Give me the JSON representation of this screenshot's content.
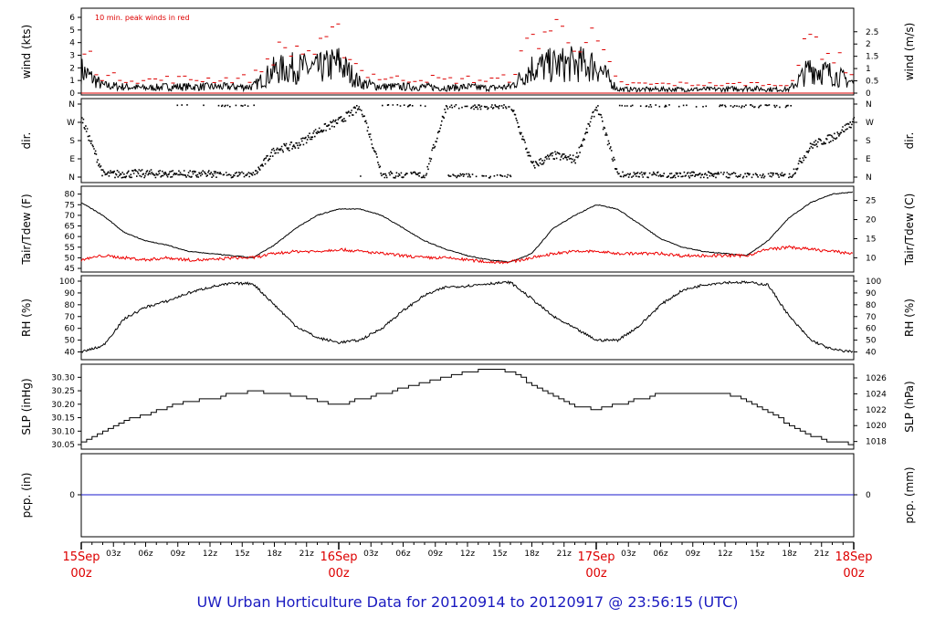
{
  "title": "UW Urban Horticulture Data for 20120914  to  20120917 @ 23:56:15  (UTC)",
  "colors": {
    "peak": "#dd0000",
    "dew": "#ee0000",
    "pcp": "#1a1acc",
    "day_label": "#dd0000",
    "title": "#1a1ac0"
  },
  "chart_data": [
    {
      "type": "line",
      "name": "wind",
      "ylabel": "wind (kts)",
      "ylabel_right": "wind (m/s)",
      "annotation": "10 min. peak winds in red",
      "ylim": [
        0,
        6
      ],
      "yticks": [
        "0",
        "1",
        "2",
        "3",
        "4",
        "5",
        "6"
      ],
      "yticks_right": [
        "0",
        "0.5",
        "1",
        "1.5",
        "2",
        "2.5"
      ],
      "x_hours": [
        0,
        2,
        4,
        6,
        8,
        10,
        12,
        14,
        16,
        18,
        20,
        22,
        24,
        26,
        28,
        30,
        32,
        34,
        36,
        38,
        40,
        42,
        44,
        46,
        48,
        50,
        52,
        54,
        56,
        58,
        60,
        62,
        64,
        66,
        68,
        70,
        72
      ],
      "wind_kts": [
        1.8,
        0.6,
        0.5,
        0.4,
        0.5,
        0.5,
        0.5,
        0.5,
        0.5,
        1.8,
        2.0,
        1.9,
        2.4,
        0.8,
        0.5,
        0.5,
        0.5,
        0.4,
        0.5,
        0.4,
        0.5,
        2.0,
        2.2,
        2.3,
        2.2,
        0.3,
        0.3,
        0.3,
        0.3,
        0.3,
        0.3,
        0.4,
        0.3,
        0.3,
        2.0,
        1.5,
        0.8
      ],
      "peak_kts": [
        3.8,
        1.3,
        1.2,
        1.0,
        1.1,
        1.1,
        1.1,
        1.1,
        1.2,
        3.2,
        3.5,
        3.2,
        4.5,
        1.8,
        1.2,
        1.1,
        1.2,
        1.0,
        1.1,
        1.0,
        1.2,
        4.3,
        5.2,
        4.4,
        4.0,
        0.8,
        0.7,
        0.7,
        0.7,
        0.7,
        0.6,
        0.8,
        0.6,
        0.6,
        4.5,
        3.0,
        1.6
      ]
    },
    {
      "type": "scatter",
      "name": "dir",
      "ylabel": "dir.",
      "ylabel_right": "dir.",
      "yticks": [
        "N",
        "E",
        "S",
        "W",
        "N"
      ],
      "x_hours": [
        0,
        2,
        4,
        6,
        8,
        10,
        12,
        14,
        16,
        18,
        20,
        22,
        24,
        26,
        28,
        30,
        32,
        34,
        36,
        38,
        40,
        42,
        44,
        46,
        48,
        50,
        52,
        54,
        56,
        58,
        60,
        62,
        64,
        66,
        68,
        70,
        72
      ],
      "dir_deg": [
        290,
        15,
        20,
        20,
        20,
        15,
        15,
        10,
        10,
        140,
        160,
        230,
        280,
        350,
        15,
        10,
        10,
        360,
        360,
        355,
        355,
        60,
        110,
        90,
        355,
        10,
        10,
        10,
        10,
        10,
        10,
        5,
        5,
        5,
        160,
        200,
        280
      ]
    },
    {
      "type": "line",
      "name": "temp",
      "ylabel": "Tair/Tdew (F)",
      "ylabel_right": "Tair/Tdew (C)",
      "ylim": [
        45,
        82
      ],
      "yticks": [
        "45",
        "50",
        "55",
        "60",
        "65",
        "70",
        "75",
        "80"
      ],
      "yticks_right": [
        "10",
        "15",
        "20",
        "25"
      ],
      "x_hours": [
        0,
        2,
        4,
        6,
        8,
        10,
        12,
        14,
        16,
        18,
        20,
        22,
        24,
        26,
        28,
        30,
        32,
        34,
        36,
        38,
        40,
        42,
        44,
        46,
        48,
        50,
        52,
        54,
        56,
        58,
        60,
        62,
        64,
        66,
        68,
        70,
        72
      ],
      "tair_f": [
        76,
        70,
        62,
        58,
        56,
        53,
        52,
        51,
        50,
        56,
        64,
        70,
        73,
        73,
        70,
        64,
        58,
        54,
        51,
        49,
        48,
        52,
        64,
        70,
        75,
        73,
        66,
        59,
        55,
        53,
        52,
        51,
        58,
        69,
        76,
        80,
        81
      ],
      "tdew_f": [
        49,
        51,
        50,
        49,
        50,
        49,
        49,
        50,
        50,
        52,
        53,
        53,
        54,
        53,
        52,
        51,
        50,
        50,
        49,
        48,
        48,
        50,
        52,
        53,
        53,
        52,
        52,
        52,
        51,
        51,
        51,
        51,
        54,
        55,
        54,
        53,
        52
      ]
    },
    {
      "type": "line",
      "name": "rh",
      "ylabel": "RH (%)",
      "ylabel_right": "RH (%)",
      "ylim": [
        35,
        100
      ],
      "yticks": [
        "40",
        "50",
        "60",
        "70",
        "80",
        "90",
        "100"
      ],
      "x_hours": [
        0,
        2,
        4,
        6,
        8,
        10,
        12,
        14,
        16,
        18,
        20,
        22,
        24,
        26,
        28,
        30,
        32,
        34,
        36,
        38,
        40,
        42,
        44,
        46,
        48,
        50,
        52,
        54,
        56,
        58,
        60,
        62,
        64,
        66,
        68,
        70,
        72
      ],
      "rh_pct": [
        40,
        45,
        68,
        78,
        83,
        90,
        95,
        98,
        98,
        80,
        62,
        52,
        48,
        50,
        60,
        75,
        88,
        95,
        96,
        98,
        99,
        85,
        70,
        60,
        50,
        50,
        62,
        80,
        92,
        97,
        99,
        99,
        97,
        70,
        50,
        42,
        40
      ]
    },
    {
      "type": "line",
      "name": "slp",
      "ylabel": "SLP (inHg)",
      "ylabel_right": "SLP (hPa)",
      "ylim": [
        30.04,
        30.335
      ],
      "yticks": [
        "30.05",
        "30.10",
        "30.15",
        "30.20",
        "30.25",
        "30.30"
      ],
      "yticks_right": [
        "1018",
        "1020",
        "1022",
        "1024",
        "1026"
      ],
      "x_hours": [
        0,
        2,
        4,
        6,
        8,
        10,
        12,
        14,
        16,
        18,
        20,
        22,
        24,
        26,
        28,
        30,
        32,
        34,
        36,
        38,
        40,
        42,
        44,
        46,
        48,
        50,
        52,
        54,
        56,
        58,
        60,
        62,
        64,
        66,
        68,
        70,
        72
      ],
      "slp_inhg": [
        30.06,
        30.1,
        30.14,
        30.16,
        30.19,
        30.21,
        30.22,
        30.24,
        30.25,
        30.24,
        30.23,
        30.21,
        30.2,
        30.22,
        30.24,
        30.26,
        30.28,
        30.3,
        30.32,
        30.33,
        30.32,
        30.27,
        30.23,
        30.19,
        30.18,
        30.2,
        30.22,
        30.24,
        30.24,
        30.24,
        30.24,
        30.21,
        30.17,
        30.12,
        30.08,
        30.06,
        30.05
      ]
    },
    {
      "type": "line",
      "name": "pcp",
      "ylabel": "pcp. (in)",
      "ylabel_right": "pcp. (mm)",
      "yticks": [
        "0"
      ],
      "yticks_right": [
        "0"
      ],
      "x_hours": [
        0,
        72
      ],
      "pcp_in": [
        0,
        0
      ]
    }
  ],
  "x_axis": {
    "hour_labels": [
      "03z",
      "06z",
      "09z",
      "12z",
      "15z",
      "18z",
      "21z",
      "03z",
      "06z",
      "09z",
      "12z",
      "15z",
      "18z",
      "21z",
      "03z",
      "06z",
      "09z",
      "12z",
      "15z",
      "18z",
      "21z"
    ],
    "hour_positions": [
      3,
      6,
      9,
      12,
      15,
      18,
      21,
      27,
      30,
      33,
      36,
      39,
      42,
      45,
      51,
      54,
      57,
      60,
      63,
      66,
      69
    ],
    "days": [
      {
        "date": "15Sep",
        "hour": "00z",
        "pos": 0
      },
      {
        "date": "16Sep",
        "hour": "00z",
        "pos": 24
      },
      {
        "date": "17Sep",
        "hour": "00z",
        "pos": 48
      },
      {
        "date": "18Sep",
        "hour": "00z",
        "pos": 72
      }
    ]
  }
}
